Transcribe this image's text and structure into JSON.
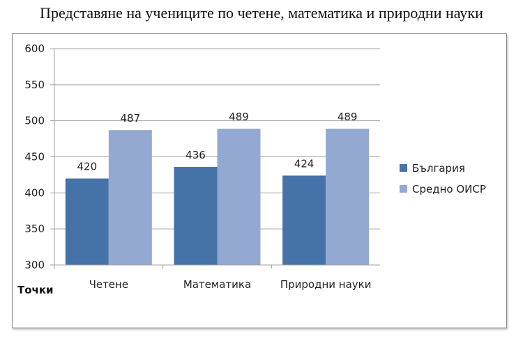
{
  "title": "Представяне на учениците по четене, математика и природни науки",
  "chart_data": {
    "type": "bar",
    "title": "Представяне на учениците по четене, математика и природни науки",
    "categories": [
      "Четене",
      "Математика",
      "Природни науки"
    ],
    "series": [
      {
        "name": "България",
        "values": [
          420,
          436,
          424
        ],
        "color": "#4572a7"
      },
      {
        "name": "Средно ОИСР",
        "values": [
          487,
          489,
          489
        ],
        "color": "#93a9d1"
      }
    ],
    "ylabel": "Точки",
    "xlabel": "",
    "ylim": [
      300,
      600
    ],
    "yticks": [
      300,
      350,
      400,
      450,
      500,
      550,
      600
    ],
    "grid": true,
    "legend": "right",
    "data_labels": true
  }
}
